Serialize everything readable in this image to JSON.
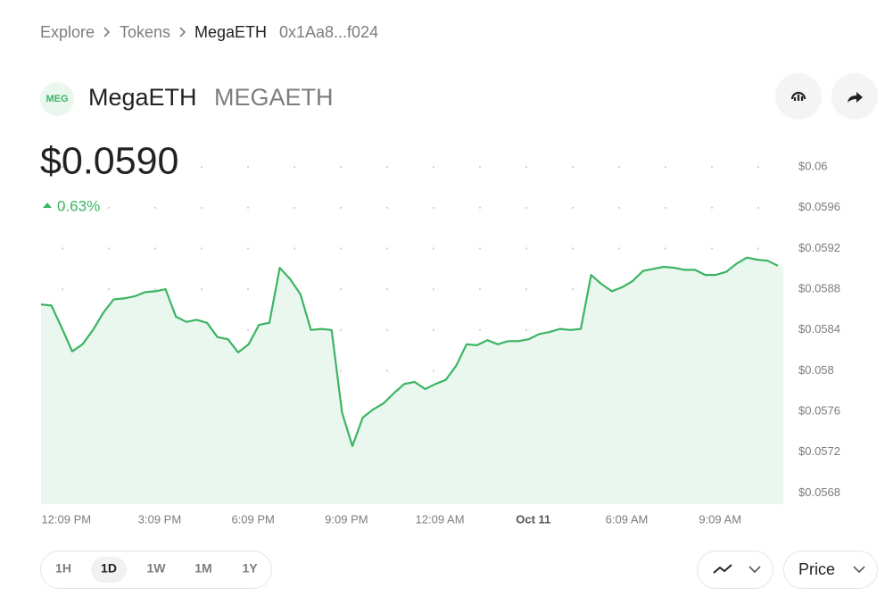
{
  "breadcrumb": [
    "Explore",
    "Tokens",
    "MegaETH",
    "0x1Aa8...f024"
  ],
  "token": {
    "icon_text": "MEG",
    "name": "MegaETH",
    "symbol": "MEGAETH"
  },
  "price": "$0.0590",
  "change": "0.63%",
  "chart_data": {
    "type": "line",
    "categories": [
      null,
      null,
      "12:09 PM",
      null,
      null,
      null,
      null,
      null,
      null,
      null,
      null,
      "3:09 PM",
      null,
      null,
      null,
      null,
      null,
      null,
      null,
      null,
      "6:09 PM",
      null,
      null,
      null,
      null,
      null,
      null,
      null,
      null,
      "9:09 PM",
      null,
      null,
      null,
      null,
      null,
      null,
      null,
      null,
      "12:09 AM",
      null,
      null,
      null,
      null,
      null,
      null,
      null,
      null,
      "Oct 11",
      null,
      null,
      null,
      null,
      null,
      null,
      null,
      null,
      "6:09 AM",
      null,
      null,
      null,
      null,
      null,
      null,
      null,
      null,
      "9:09 AM",
      null,
      null,
      null,
      null,
      null,
      null
    ],
    "values": [
      0.05865,
      0.05864,
      0.05842,
      0.05819,
      0.05826,
      0.0584,
      0.05857,
      0.0587,
      0.05871,
      0.05873,
      0.05877,
      0.05878,
      0.0588,
      0.05853,
      0.05848,
      0.0585,
      0.05847,
      0.05833,
      0.05831,
      0.05818,
      0.05826,
      0.05845,
      0.05847,
      0.05901,
      0.0589,
      0.05875,
      0.0584,
      0.05841,
      0.0584,
      0.05759,
      0.05726,
      0.05754,
      0.05762,
      0.05768,
      0.05778,
      0.05787,
      0.05789,
      0.05782,
      0.05787,
      0.05791,
      0.05805,
      0.05826,
      0.05825,
      0.0583,
      0.05826,
      0.05829,
      0.05829,
      0.05831,
      0.05836,
      0.05838,
      0.05841,
      0.0584,
      0.05841,
      0.05894,
      0.05885,
      0.05878,
      0.05882,
      0.05888,
      0.05898,
      0.059,
      0.05902,
      0.05901,
      0.05899,
      0.05899,
      0.05894,
      0.05894,
      0.05897,
      0.05905,
      0.05911,
      0.05909,
      0.05908,
      0.05903
    ],
    "color": "#3bb563",
    "fill_color": "#e9f7ee",
    "ylim": [
      0.05669,
      0.06015
    ],
    "yticks": [
      {
        "value": 0.0568,
        "label": "$0.0568"
      },
      {
        "value": 0.0572,
        "label": "$0.0572"
      },
      {
        "value": 0.0576,
        "label": "$0.0576"
      },
      {
        "value": 0.058,
        "label": "$0.058"
      },
      {
        "value": 0.0584,
        "label": "$0.0584"
      },
      {
        "value": 0.0588,
        "label": "$0.0588"
      },
      {
        "value": 0.0592,
        "label": "$0.0592"
      },
      {
        "value": 0.0596,
        "label": "$0.0596"
      },
      {
        "value": 0.06,
        "label": "$0.06"
      }
    ],
    "grid": true
  },
  "time_ranges": [
    "1H",
    "1D",
    "1W",
    "1M",
    "1Y"
  ],
  "selected_range": "1D",
  "metric": "Price"
}
